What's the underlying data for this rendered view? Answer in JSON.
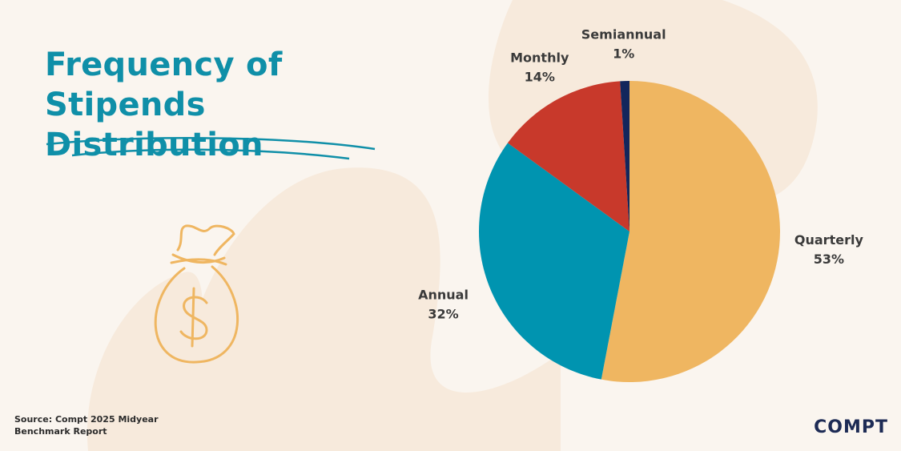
{
  "chart_data": {
    "type": "pie",
    "title": "Frequency of Stipends Distribution",
    "categories": [
      "Quarterly",
      "Annual",
      "Monthly",
      "Semiannual"
    ],
    "values": [
      53,
      32,
      14,
      1
    ],
    "value_labels": [
      "53%",
      "32%",
      "14%",
      "1%"
    ],
    "colors": [
      "#efb661",
      "#0094b0",
      "#c8392b",
      "#13265c"
    ],
    "source": "Source: Compt 2025 Midyear Benchmark Report"
  },
  "logo": "COMPT"
}
